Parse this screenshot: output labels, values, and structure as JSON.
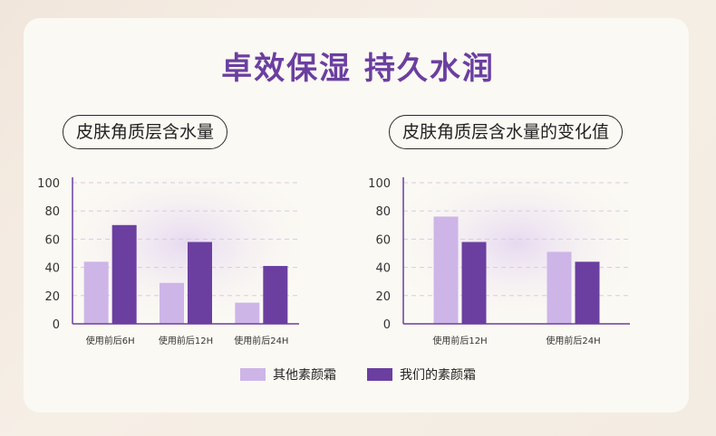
{
  "title": "卓效保湿  持久水润",
  "colors": {
    "other": "#cdb5e8",
    "ours": "#6b3fa0",
    "axis": "#6b3fa0",
    "grid": "#d8cbe6"
  },
  "chart_data": [
    {
      "type": "bar",
      "title": "皮肤角质层含水量",
      "categories": [
        "使用前后6H",
        "使用前后12H",
        "使用前后24H"
      ],
      "yticks": [
        "0",
        "20",
        "40",
        "60",
        "80",
        "100"
      ],
      "ylim": [
        0,
        100
      ],
      "series": [
        {
          "name": "其他素颜霜",
          "values": [
            44,
            29,
            15
          ]
        },
        {
          "name": "我们的素颜霜",
          "values": [
            70,
            58,
            41
          ]
        }
      ]
    },
    {
      "type": "bar",
      "title": "皮肤角质层含水量的变化值",
      "categories": [
        "使用前后12H",
        "使用前后24H"
      ],
      "yticks": [
        "0",
        "20",
        "40",
        "60",
        "80",
        "100"
      ],
      "ylim": [
        0,
        100
      ],
      "series": [
        {
          "name": "其他素颜霜",
          "values": [
            76,
            51
          ]
        },
        {
          "name": "我们的素颜霜",
          "values": [
            58,
            44
          ]
        }
      ]
    }
  ],
  "legend": [
    {
      "label": "其他素颜霜",
      "color": "#cdb5e8"
    },
    {
      "label": "我们的素颜霜",
      "color": "#6b3fa0"
    }
  ]
}
